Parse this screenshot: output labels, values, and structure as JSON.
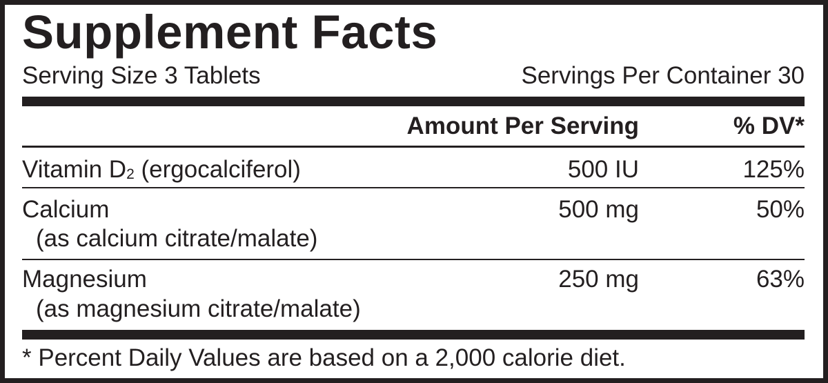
{
  "title": "Supplement Facts",
  "serving_size": "Serving Size 3 Tablets",
  "servings_per_container": "Servings Per Container 30",
  "header": {
    "amount": "Amount Per Serving",
    "dv": "% DV*"
  },
  "rows": [
    {
      "name": "Vitamin D",
      "subscript": "2",
      "name_suffix": " (ergocalciferol)",
      "amount": "500 IU",
      "dv": "125%"
    },
    {
      "name": "Calcium",
      "detail": "(as calcium citrate/malate)",
      "amount": "500 mg",
      "dv": "50%"
    },
    {
      "name": "Magnesium",
      "detail": "(as magnesium citrate/malate)",
      "amount": "250 mg",
      "dv": "63%"
    }
  ],
  "footnote": "* Percent Daily Values are based on a 2,000 calorie diet.",
  "colors": {
    "ink": "#231f20",
    "background": "#ffffff"
  }
}
